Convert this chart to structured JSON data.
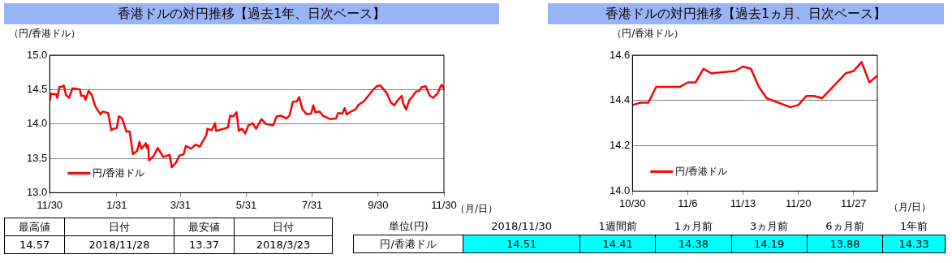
{
  "chart_data": [
    {
      "type": "line",
      "title": "香港ドルの対円推移【過去1年、日次ベース】",
      "ylabel": "（円/香港ドル）",
      "xlabel": "（月/日）",
      "legend": "bottom left",
      "grid": "y",
      "xlim": [
        "2017-11-30",
        "2018-11-30"
      ],
      "xticks": [
        {
          "value": "2017-11-30",
          "label": "11/30"
        },
        {
          "value": "2018-01-31",
          "label": "1/31"
        },
        {
          "value": "2018-03-31",
          "label": "3/31"
        },
        {
          "value": "2018-05-31",
          "label": "5/31"
        },
        {
          "value": "2018-07-31",
          "label": "7/31"
        },
        {
          "value": "2018-09-30",
          "label": "9/30"
        },
        {
          "value": "2018-11-30",
          "label": "11/30"
        }
      ],
      "ylim": [
        13,
        15
      ],
      "yticks": [
        {
          "value": 13,
          "label": "13.0"
        },
        {
          "value": 13.5,
          "label": "13.5"
        },
        {
          "value": 14,
          "label": "14.0"
        },
        {
          "value": 14.5,
          "label": "14.5"
        },
        {
          "value": 15,
          "label": "15.0"
        }
      ],
      "x": [
        "2017-11-30",
        "2017-12-01",
        "2017-12-06",
        "2017-12-07",
        "2017-12-09",
        "2017-12-11",
        "2017-12-13",
        "2017-12-15",
        "2017-12-18",
        "2017-12-21",
        "2017-12-28",
        "2017-12-29",
        "2018-01-01",
        "2018-01-02",
        "2018-01-05",
        "2018-01-08",
        "2018-01-11",
        "2018-01-16",
        "2018-01-18",
        "2018-01-23",
        "2018-01-26",
        "2018-01-28",
        "2018-01-31",
        "2018-02-02",
        "2018-02-05",
        "2018-02-09",
        "2018-02-12",
        "2018-02-15",
        "2018-02-19",
        "2018-02-21",
        "2018-02-23",
        "2018-02-27",
        "2018-02-28",
        "2018-03-01",
        "2018-03-02",
        "2018-03-06",
        "2018-03-10",
        "2018-03-12",
        "2018-03-15",
        "2018-03-21",
        "2018-03-23",
        "2018-03-27",
        "2018-03-30",
        "2018-04-03",
        "2018-04-05",
        "2018-04-10",
        "2018-04-14",
        "2018-04-18",
        "2018-04-24",
        "2018-04-25",
        "2018-04-29",
        "2018-05-02",
        "2018-05-03",
        "2018-05-10",
        "2018-05-14",
        "2018-05-16",
        "2018-05-19",
        "2018-05-22",
        "2018-05-24",
        "2018-05-27",
        "2018-05-30",
        "2018-06-02",
        "2018-06-06",
        "2018-06-09",
        "2018-06-14",
        "2018-06-18",
        "2018-06-25",
        "2018-06-28",
        "2018-07-02",
        "2018-07-07",
        "2018-07-10",
        "2018-07-13",
        "2018-07-17",
        "2018-07-19",
        "2018-07-22",
        "2018-07-26",
        "2018-07-30",
        "2018-08-01",
        "2018-08-03",
        "2018-08-07",
        "2018-08-10",
        "2018-08-17",
        "2018-08-22",
        "2018-08-24",
        "2018-08-28",
        "2018-08-30",
        "2018-09-01",
        "2018-09-05",
        "2018-09-09",
        "2018-09-12",
        "2018-09-17",
        "2018-09-21",
        "2018-09-25",
        "2018-09-29",
        "2018-10-02",
        "2018-10-08",
        "2018-10-12",
        "2018-10-15",
        "2018-10-18",
        "2018-10-22",
        "2018-10-23",
        "2018-10-26",
        "2018-10-29",
        "2018-11-01",
        "2018-11-04",
        "2018-11-07",
        "2018-11-09",
        "2018-11-13",
        "2018-11-17",
        "2018-11-20",
        "2018-11-24",
        "2018-11-27",
        "2018-11-28",
        "2018-11-30"
      ],
      "series": [
        {
          "name": "円/香港ドル",
          "color": "#ff0000",
          "values": [
            14.33,
            14.44,
            14.43,
            14.38,
            14.54,
            14.54,
            14.56,
            14.42,
            14.38,
            14.52,
            14.5,
            14.41,
            14.41,
            14.35,
            14.48,
            14.42,
            14.26,
            14.14,
            14.18,
            14.16,
            13.91,
            13.93,
            13.94,
            14.11,
            14.08,
            13.89,
            13.89,
            13.56,
            13.61,
            13.74,
            13.64,
            13.72,
            13.65,
            13.69,
            13.47,
            13.53,
            13.65,
            13.6,
            13.52,
            13.55,
            13.37,
            13.44,
            13.54,
            13.56,
            13.68,
            13.64,
            13.7,
            13.67,
            13.84,
            13.93,
            13.91,
            14.01,
            13.9,
            13.93,
            13.95,
            14.12,
            14.11,
            14.17,
            13.9,
            13.93,
            13.86,
            13.98,
            14.01,
            13.93,
            14.07,
            14.0,
            13.98,
            14.11,
            14.12,
            14.08,
            14.12,
            14.32,
            14.33,
            14.39,
            14.21,
            14.14,
            14.15,
            14.27,
            14.17,
            14.18,
            14.12,
            14.07,
            14.08,
            14.16,
            14.15,
            14.23,
            14.14,
            14.18,
            14.21,
            14.28,
            14.33,
            14.41,
            14.49,
            14.55,
            14.56,
            14.45,
            14.31,
            14.27,
            14.34,
            14.41,
            14.31,
            14.21,
            14.35,
            14.4,
            14.47,
            14.48,
            14.53,
            14.55,
            14.41,
            14.38,
            14.44,
            14.55,
            14.57,
            14.51
          ]
        }
      ]
    },
    {
      "type": "line",
      "title": "香港ドルの対円推移【過去1ヵ月、日次ベース】",
      "ylabel": "（円/香港ドル）",
      "xlabel": "（月/日）",
      "legend": "bottom left",
      "grid": "y",
      "xlim": [
        "2018-10-30",
        "2018-11-30"
      ],
      "xticks": [
        {
          "value": "2018-10-30",
          "label": "10/30"
        },
        {
          "value": "2018-11-06",
          "label": "11/6"
        },
        {
          "value": "2018-11-13",
          "label": "11/13"
        },
        {
          "value": "2018-11-20",
          "label": "11/20"
        },
        {
          "value": "2018-11-27",
          "label": "11/27"
        }
      ],
      "ylim": [
        14,
        14.6
      ],
      "yticks": [
        {
          "value": 14,
          "label": "14.0"
        },
        {
          "value": 14.2,
          "label": "14.2"
        },
        {
          "value": 14.4,
          "label": "14.4"
        },
        {
          "value": 14.6,
          "label": "14.6"
        }
      ],
      "x": [
        "2018-10-30",
        "2018-10-31",
        "2018-11-01",
        "2018-11-02",
        "2018-11-05",
        "2018-11-06",
        "2018-11-07",
        "2018-11-08",
        "2018-11-09",
        "2018-11-12",
        "2018-11-13",
        "2018-11-14",
        "2018-11-15",
        "2018-11-16",
        "2018-11-19",
        "2018-11-20",
        "2018-11-21",
        "2018-11-22",
        "2018-11-23",
        "2018-11-26",
        "2018-11-27",
        "2018-11-28",
        "2018-11-29",
        "2018-11-30"
      ],
      "series": [
        {
          "name": "円/香港ドル",
          "color": "#ff0000",
          "values": [
            14.38,
            14.39,
            14.39,
            14.46,
            14.46,
            14.48,
            14.48,
            14.54,
            14.52,
            14.53,
            14.55,
            14.54,
            14.46,
            14.41,
            14.37,
            14.38,
            14.42,
            14.42,
            14.41,
            14.52,
            14.53,
            14.57,
            14.48,
            14.51
          ]
        }
      ]
    },
    {
      "type": "other",
      "categories": [
        "最高値",
        "日付",
        "最安値",
        "日付"
      ],
      "annotations": [
        "14.57",
        "2018/11/28",
        "13.37",
        "2018/3/23"
      ]
    },
    {
      "type": "other",
      "categories": [
        "単位(円)",
        "2018/11/30",
        "1週間前",
        "1ヵ月前",
        "3ヵ月前",
        "6ヵ月前",
        "1年前"
      ],
      "annotations": [
        "円/香港ドル",
        "14.51",
        "14.41",
        "14.38",
        "14.19",
        "13.88",
        "14.33"
      ],
      "color": "#00ffff"
    }
  ]
}
